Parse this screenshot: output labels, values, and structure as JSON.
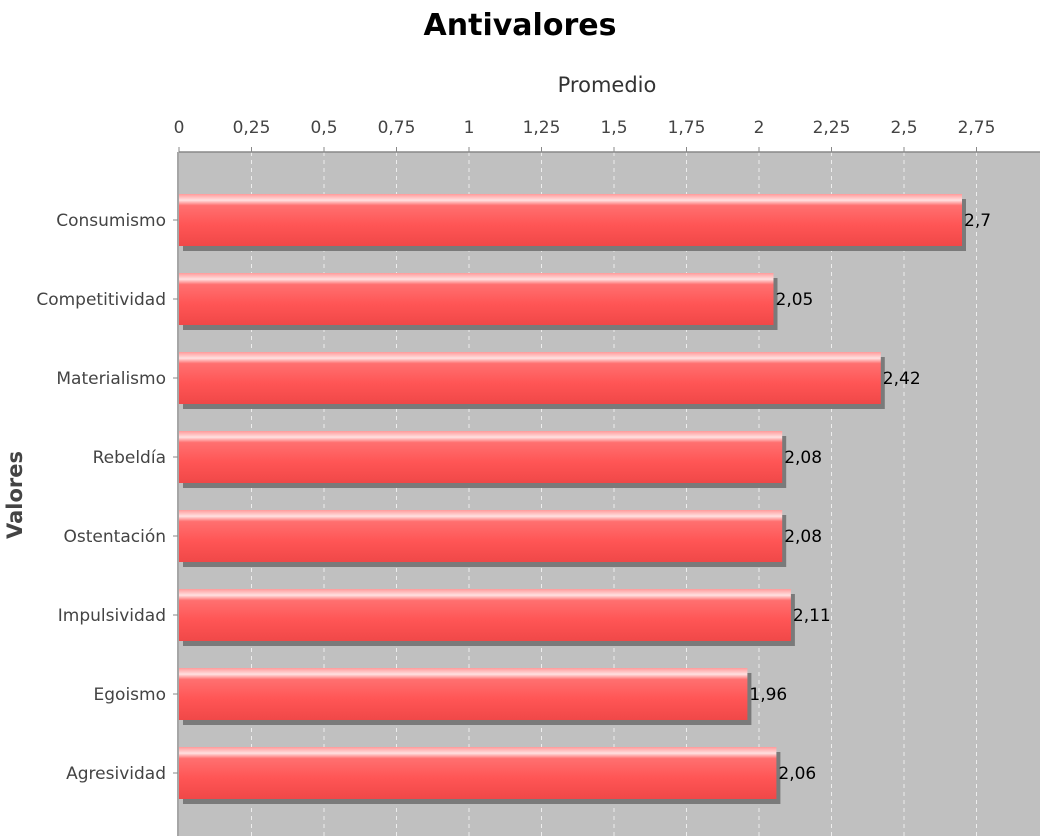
{
  "chart_data": {
    "type": "bar",
    "orientation": "horizontal",
    "title": "Antivalores",
    "xlabel": "Promedio",
    "ylabel": "Valores",
    "xlim": [
      0,
      3
    ],
    "ticks": [
      "0",
      "0,25",
      "0,5",
      "0,75",
      "1",
      "1,25",
      "1,5",
      "1,75",
      "2",
      "2,25",
      "2,5",
      "2,75"
    ],
    "tick_values": [
      0,
      0.25,
      0.5,
      0.75,
      1,
      1.25,
      1.5,
      1.75,
      2,
      2.25,
      2.5,
      2.75
    ],
    "categories": [
      "Consumismo",
      "Competitividad",
      "Materialismo",
      "Rebeldía",
      "Ostentación",
      "Impulsividad",
      "Egoismo",
      "Agresividad"
    ],
    "values": [
      2.7,
      2.05,
      2.42,
      2.08,
      2.08,
      2.11,
      1.96,
      2.06
    ],
    "value_labels": [
      "2,7",
      "2,05",
      "2,42",
      "2,08",
      "2,08",
      "2,11",
      "1,96",
      "2,06"
    ],
    "grid": true,
    "legend": "none",
    "colors": {
      "bar": "#ff5a5a",
      "bar_highlight": "#ffd0d0",
      "bar_shadow": "#808080",
      "plot_background": "#c0c0c0",
      "grid": "#e8e8e8"
    }
  }
}
